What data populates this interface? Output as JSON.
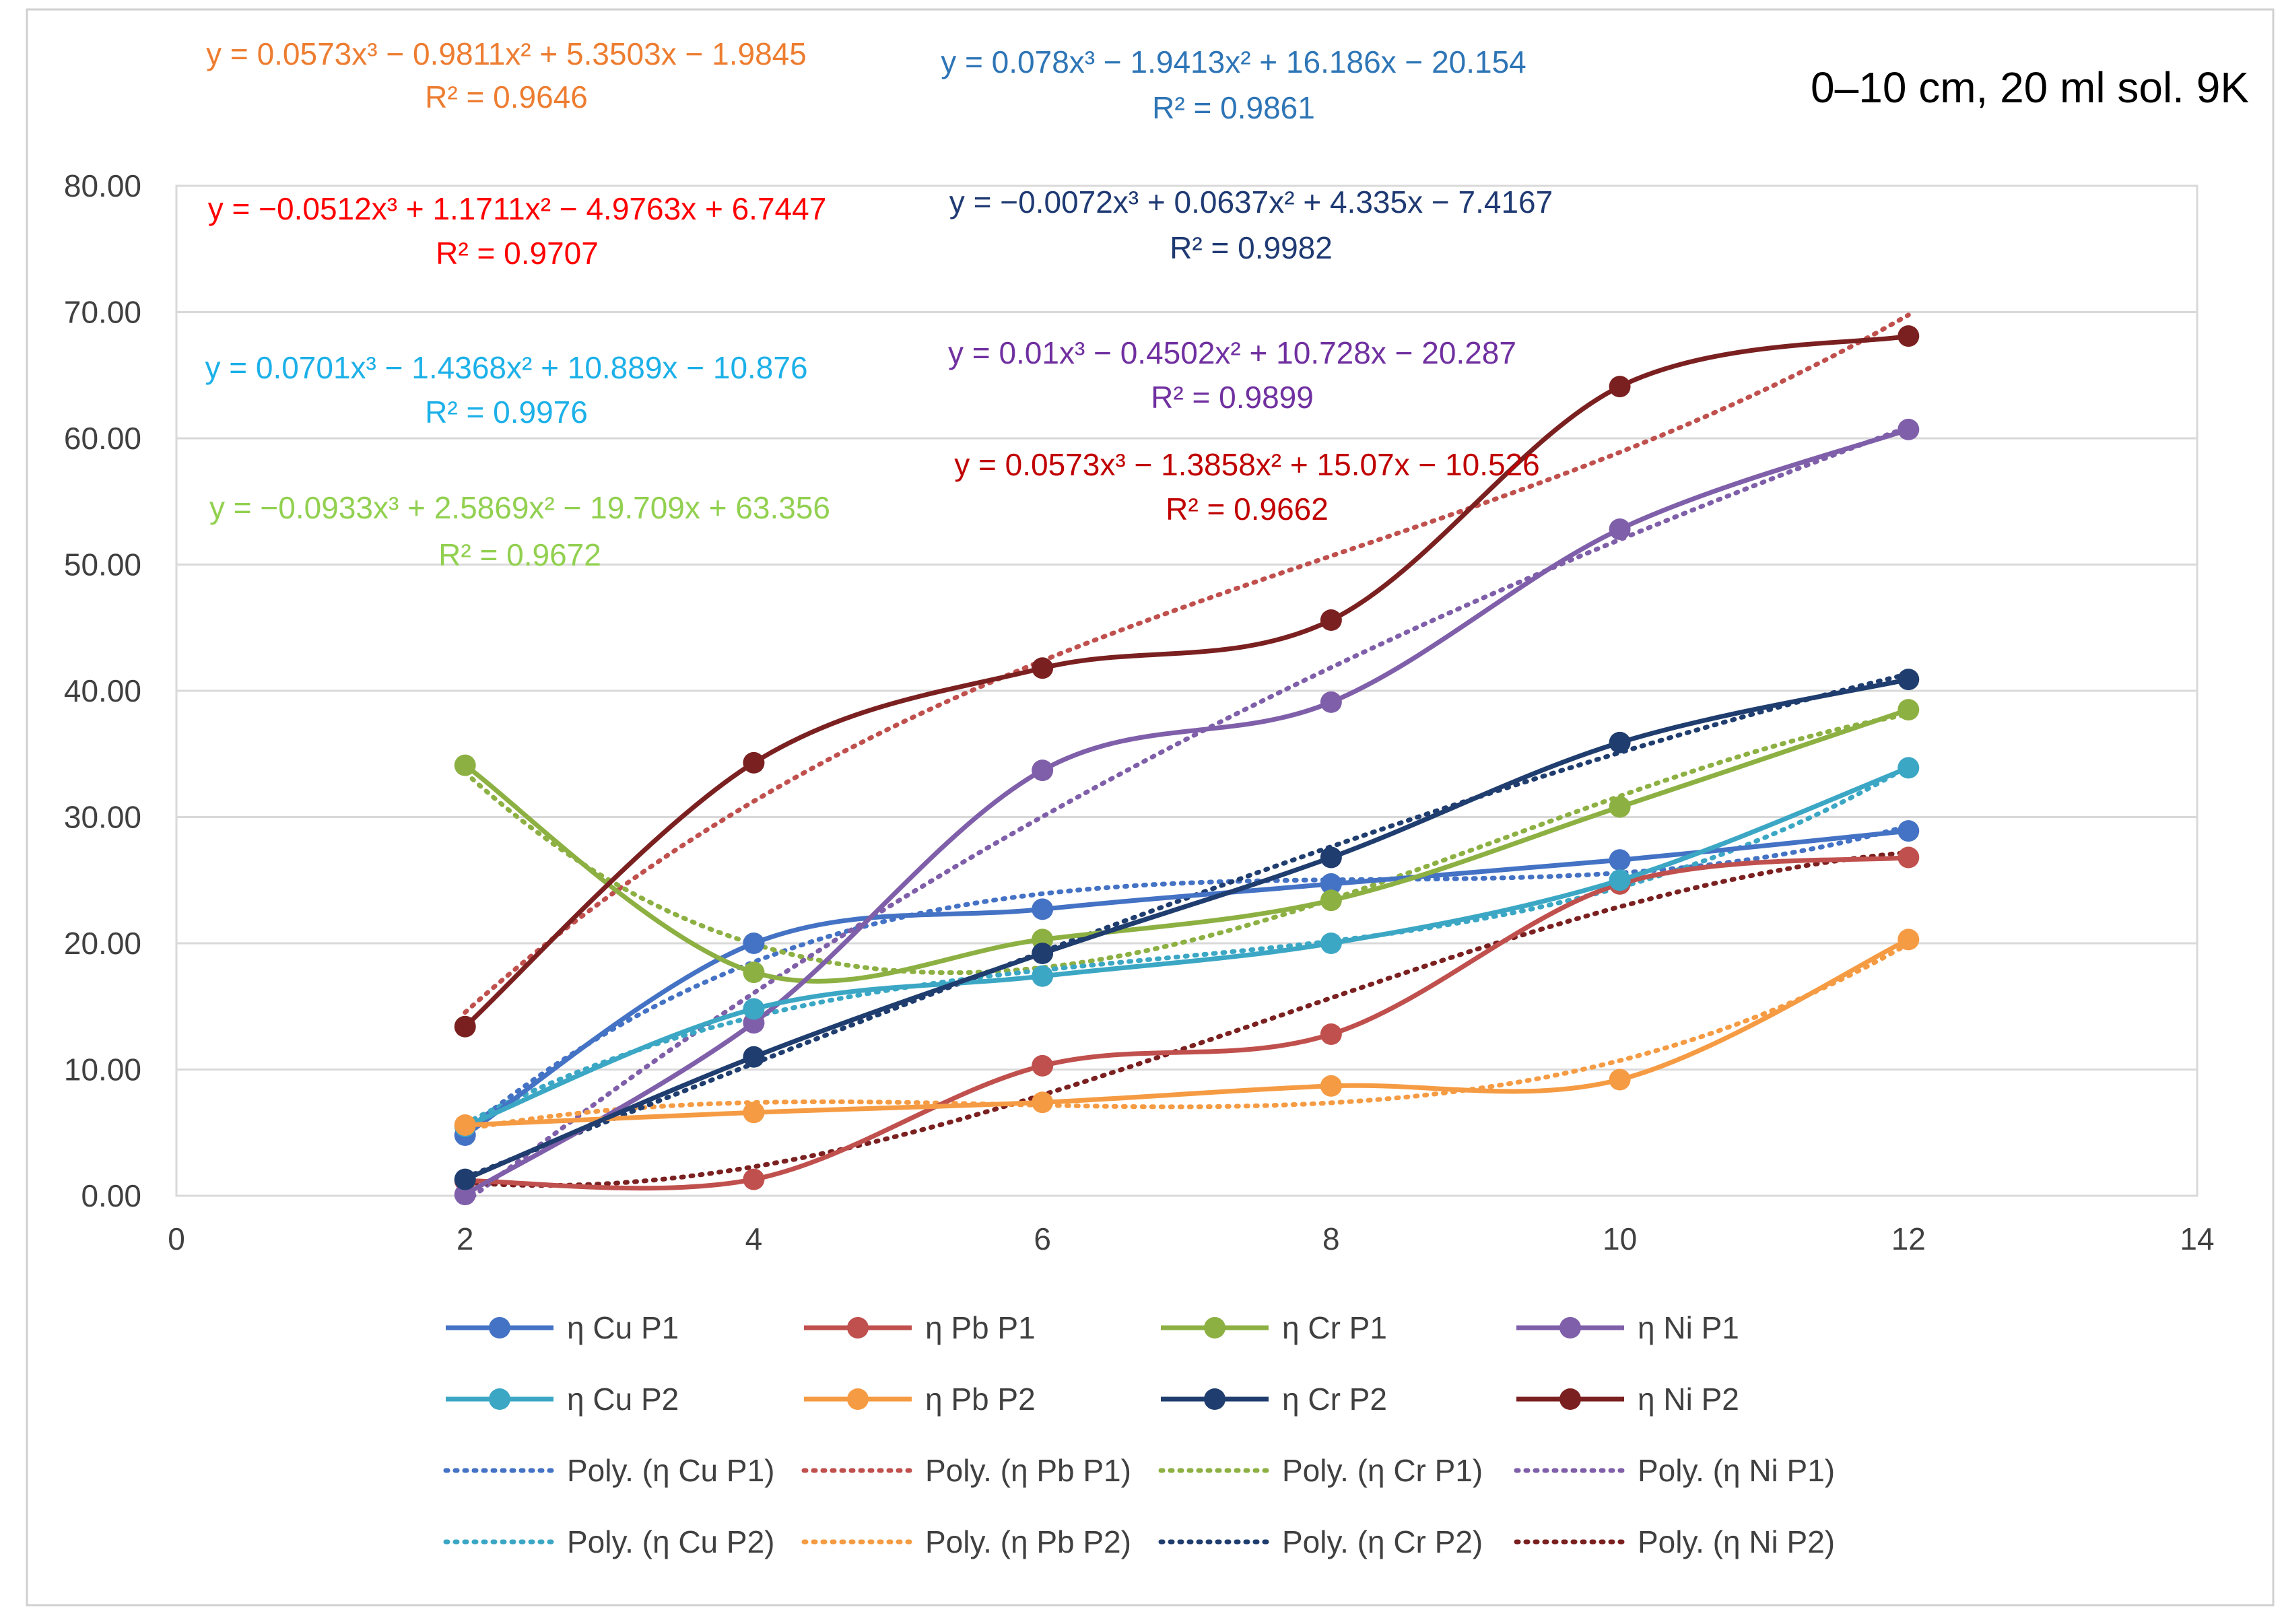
{
  "chart_data": {
    "type": "line",
    "title": "0–10 cm, 20 ml sol. 9K",
    "xlabel": "",
    "ylabel": "",
    "xlim": [
      0,
      14
    ],
    "ylim": [
      0,
      80
    ],
    "x_ticks": [
      0,
      2,
      4,
      6,
      8,
      10,
      12,
      14
    ],
    "y_ticks": [
      0,
      10,
      20,
      30,
      40,
      50,
      60,
      70,
      80
    ],
    "x_tick_labels": [
      "0",
      "2",
      "4",
      "6",
      "8",
      "10",
      "12",
      "14"
    ],
    "y_tick_labels": [
      "0.00",
      "10.00",
      "20.00",
      "30.00",
      "40.00",
      "50.00",
      "60.00",
      "70.00",
      "80.00"
    ],
    "grid": true,
    "legend_position": "bottom",
    "x": [
      2,
      4,
      6,
      8,
      10,
      12
    ],
    "series": [
      {
        "name": "η Cu P1",
        "color": "#4472C4",
        "values": [
          4.8,
          20.0,
          22.7,
          24.7,
          26.6,
          28.9
        ]
      },
      {
        "name": "η Pb P1",
        "color": "#C0504D",
        "values": [
          1.2,
          1.3,
          10.3,
          12.8,
          24.7,
          26.8
        ]
      },
      {
        "name": "η Cr P1",
        "color": "#8DB043",
        "values": [
          34.1,
          17.7,
          20.3,
          23.4,
          30.8,
          38.5
        ]
      },
      {
        "name": "η Ni P1",
        "color": "#7F5FA9",
        "values": [
          0.1,
          13.7,
          33.7,
          39.1,
          52.8,
          60.7
        ]
      },
      {
        "name": "η Cu P2",
        "color": "#3BA7C4",
        "values": [
          5.5,
          14.8,
          17.4,
          20.0,
          25.0,
          33.9
        ]
      },
      {
        "name": "η Pb P2",
        "color": "#F59B43",
        "values": [
          5.6,
          6.6,
          7.4,
          8.7,
          9.2,
          20.3
        ]
      },
      {
        "name": "η Cr P2",
        "color": "#1F3D6E",
        "values": [
          1.3,
          11.0,
          19.2,
          26.8,
          35.9,
          40.9
        ]
      },
      {
        "name": "η Ni P2",
        "color": "#7B2020",
        "values": [
          13.4,
          34.3,
          41.8,
          45.6,
          64.1,
          68.1
        ]
      }
    ],
    "trendlines": [
      {
        "name": "Poly. (η Cu P1)",
        "color": "#4472C4",
        "coefficients": [
          0.078,
          -1.9413,
          16.186,
          -20.154
        ],
        "equation": "y = 0.078x³ − 1.9413x² + 16.186x − 20.154",
        "r2": "R² = 0.9861",
        "eq_color": "#2E75B6"
      },
      {
        "name": "Poly. (η Pb P1)",
        "color": "#C0504D",
        "coefficients": [
          0.0573,
          -1.3858,
          15.07,
          -10.526
        ],
        "equation": "y = 0.0573x³ − 1.3858x² + 15.07x − 10.526",
        "r2": "R² = 0.9662",
        "eq_color": "#C00000"
      },
      {
        "name": "Poly. (η Cr P1)",
        "color": "#8DB043",
        "coefficients": [
          -0.0933,
          2.5869,
          -19.709,
          63.356
        ],
        "equation": "y = −0.0933x³ + 2.5869x² − 19.709x + 63.356",
        "r2": "R² = 0.9672",
        "eq_color": "#92D050"
      },
      {
        "name": "Poly. (η Ni P1)",
        "color": "#7F5FA9",
        "coefficients": [
          0.01,
          -0.4502,
          10.728,
          -20.287
        ],
        "equation": "y = 0.01x³ − 0.4502x² + 10.728x − 20.287",
        "r2": "R² = 0.9899",
        "eq_color": "#7030A0"
      },
      {
        "name": "Poly. (η Cu P2)",
        "color": "#3BA7C4",
        "coefficients": [
          0.0701,
          -1.4368,
          10.889,
          -10.876
        ],
        "equation": "y = 0.0701x³ − 1.4368x² + 10.889x − 10.876",
        "r2": "R² = 0.9976",
        "eq_color": "#1CB0E8"
      },
      {
        "name": "Poly. (η Pb P2)",
        "color": "#F59B43",
        "coefficients": [
          0.0573,
          -0.9811,
          5.3503,
          -1.9845
        ],
        "equation": "y = 0.0573x³ − 0.9811x² + 5.3503x − 1.9845",
        "r2": "R² = 0.9646",
        "eq_color": "#ED7D31"
      },
      {
        "name": "Poly. (η Cr P2)",
        "color": "#1F3D6E",
        "coefficients": [
          -0.0072,
          0.0637,
          4.335,
          -7.4167
        ],
        "equation": "y = −0.0072x³ + 0.0637x² + 4.335x − 7.4167",
        "r2": "R² = 0.9982",
        "eq_color": "#1F3A73"
      },
      {
        "name": "Poly. (η Ni P2)",
        "color": "#7B2020",
        "coefficients": [
          -0.0512,
          1.1711,
          -4.9763,
          6.7447
        ],
        "equation": "y = −0.0512x³ + 1.1711x² − 4.9763x + 6.7447",
        "r2": "R² = 0.9707",
        "eq_color": "#FF0000"
      }
    ]
  }
}
